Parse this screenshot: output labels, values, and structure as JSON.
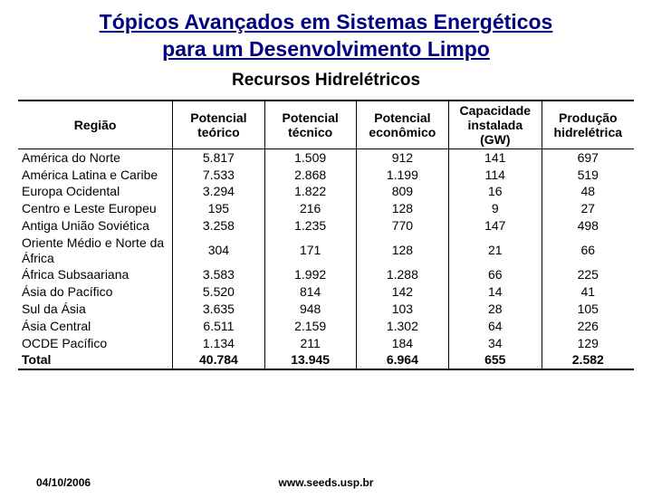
{
  "header": {
    "title_line1": "Tópicos Avançados em Sistemas Energéticos",
    "title_line2": "para um Desenvolvimento Limpo",
    "subtitle": "Recursos Hidrelétricos"
  },
  "table": {
    "columns": [
      "Região",
      "Potencial teórico",
      "Potencial técnico",
      "Potencial econômico",
      "Capacidade instalada (GW)",
      "Produção hidrelétrica"
    ],
    "rows": [
      [
        "América do Norte",
        "5.817",
        "1.509",
        "912",
        "141",
        "697"
      ],
      [
        "América Latina e Caribe",
        "7.533",
        "2.868",
        "1.199",
        "114",
        "519"
      ],
      [
        "Europa Ocidental",
        "3.294",
        "1.822",
        "809",
        "16",
        "48"
      ],
      [
        "Centro e Leste Europeu",
        "195",
        "216",
        "128",
        "9",
        "27"
      ],
      [
        "Antiga União Soviética",
        "3.258",
        "1.235",
        "770",
        "147",
        "498"
      ],
      [
        "Oriente Médio e Norte da África",
        "304",
        "171",
        "128",
        "21",
        "66"
      ],
      [
        "África Subsaariana",
        "3.583",
        "1.992",
        "1.288",
        "66",
        "225"
      ],
      [
        "Ásia do Pacífico",
        "5.520",
        "814",
        "142",
        "14",
        "41"
      ],
      [
        "Sul da Ásia",
        "3.635",
        "948",
        "103",
        "28",
        "105"
      ],
      [
        "Ásia Central",
        "6.511",
        "2.159",
        "1.302",
        "64",
        "226"
      ],
      [
        "OCDE Pacífico",
        "1.134",
        "211",
        "184",
        "34",
        "129"
      ]
    ],
    "total": [
      "Total",
      "40.784",
      "13.945",
      "6.964",
      "655",
      "2.582"
    ]
  },
  "footer": {
    "date": "04/10/2006",
    "url": "www.seeds.usp.br"
  }
}
